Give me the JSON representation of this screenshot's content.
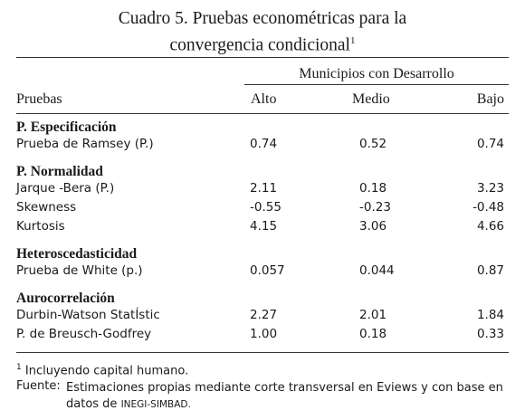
{
  "title": {
    "text": "Cuadro 5. Pruebas econométricas para la convergencia condicional",
    "sup": "1"
  },
  "table": {
    "group_header": "Municipios con Desarrollo",
    "columns": [
      "Pruebas",
      "Alto",
      "Medio",
      "Bajo"
    ],
    "sections": [
      {
        "heading": "P. Especificación",
        "rows": [
          [
            "Prueba de Ramsey (P.)",
            "0.74",
            "0.52",
            "0.74"
          ]
        ]
      },
      {
        "heading": "P. Normalidad",
        "rows": [
          [
            "Jarque -Bera (P.)",
            "2.11",
            "0.18",
            "3.23"
          ],
          [
            "Skewness",
            "-0.55",
            "-0.23",
            "-0.48"
          ],
          [
            "Kurtosis",
            "4.15",
            "3.06",
            "4.66"
          ]
        ]
      },
      {
        "heading": "Heteroscedasticidad",
        "rows": [
          [
            "Prueba de White (p.)",
            "0.057",
            "0.044",
            "0.87"
          ]
        ]
      },
      {
        "heading": "Aurocorrelación",
        "rows": [
          [
            "Durbin-Watson StatÍstic",
            "2.27",
            "2.01",
            "1.84"
          ],
          [
            "P. de Breusch-Godfrey",
            "1.00",
            "0.18",
            "0.33"
          ]
        ]
      }
    ]
  },
  "notes": {
    "note1": {
      "mark": "1",
      "text": "Incluyendo capital humano."
    },
    "source": {
      "label": "Fuente:",
      "text": "Estimaciones propias mediante corte transversal en Eviews y con base en datos de",
      "smallcaps": "INEGI-SIMBAD."
    }
  }
}
